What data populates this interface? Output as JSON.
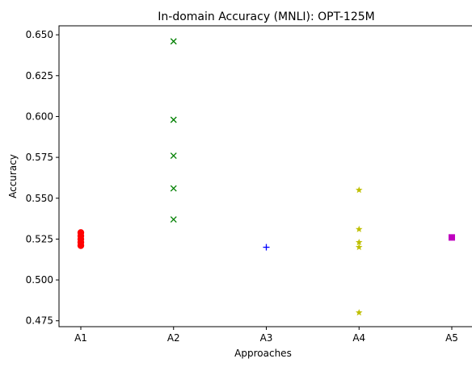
{
  "chart_data": {
    "type": "scatter",
    "title": "In-domain Accuracy (MNLI): OPT-125M",
    "xlabel": "Approaches",
    "ylabel": "Accuracy",
    "categories": [
      "A1",
      "A2",
      "A3",
      "A4",
      "A5"
    ],
    "ylim": [
      0.4714,
      0.6555
    ],
    "yticks": [
      0.475,
      0.5,
      0.525,
      0.55,
      0.575,
      0.6,
      0.625,
      0.65
    ],
    "ytick_labels": [
      "0.475",
      "0.500",
      "0.525",
      "0.550",
      "0.575",
      "0.600",
      "0.625",
      "0.650"
    ],
    "grid": false,
    "legend": "none",
    "series": [
      {
        "category": "A1",
        "marker": "circle",
        "color": "#ff0000",
        "values": [
          0.529,
          0.527,
          0.525,
          0.523,
          0.521
        ]
      },
      {
        "category": "A2",
        "marker": "x",
        "color": "#008000",
        "values": [
          0.646,
          0.598,
          0.576,
          0.556,
          0.537
        ]
      },
      {
        "category": "A3",
        "marker": "plus",
        "color": "#0000ff",
        "values": [
          0.52
        ]
      },
      {
        "category": "A4",
        "marker": "star",
        "color": "#bfbf00",
        "values": [
          0.555,
          0.531,
          0.523,
          0.52,
          0.48
        ]
      },
      {
        "category": "A5",
        "marker": "square",
        "color": "#bf00bf",
        "values": [
          0.526
        ]
      }
    ]
  }
}
